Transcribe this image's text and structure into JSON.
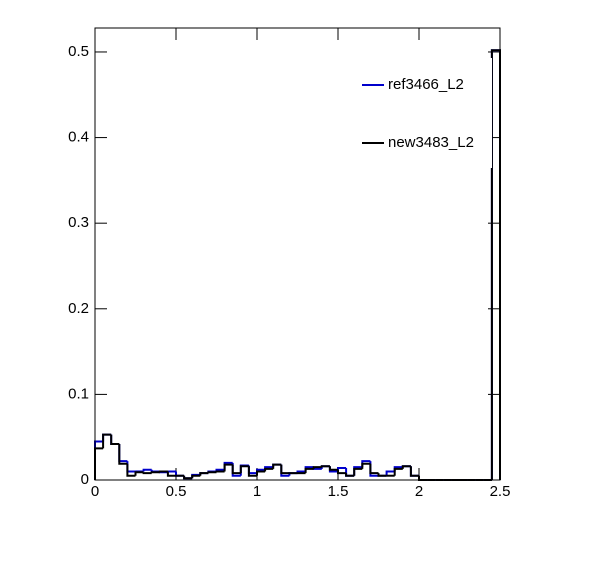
{
  "chart_data": {
    "type": "histogram",
    "bins": [
      0,
      0.05,
      0.1,
      0.15,
      0.2,
      0.25,
      0.3,
      0.35,
      0.4,
      0.45,
      0.5,
      0.55,
      0.6,
      0.65,
      0.7,
      0.75,
      0.8,
      0.85,
      0.9,
      0.95,
      1,
      1.05,
      1.1,
      1.15,
      1.2,
      1.25,
      1.3,
      1.35,
      1.4,
      1.45,
      1.5,
      1.55,
      1.6,
      1.65,
      1.7,
      1.75,
      1.8,
      1.85,
      1.9,
      1.95,
      2,
      2.05,
      2.1,
      2.15,
      2.2,
      2.25,
      2.3,
      2.35,
      2.4,
      2.45,
      2.5
    ],
    "series": [
      {
        "name": "ref3466_L2",
        "color": "#0000cc",
        "values": [
          0.045,
          0.053,
          0.042,
          0.022,
          0.01,
          0.01,
          0.012,
          0.01,
          0.009,
          0.01,
          0.005,
          0.002,
          0.006,
          0.008,
          0.01,
          0.012,
          0.02,
          0.005,
          0.017,
          0.008,
          0.012,
          0.015,
          0.018,
          0.005,
          0.008,
          0.01,
          0.015,
          0.013,
          0.016,
          0.01,
          0.014,
          0.005,
          0.015,
          0.022,
          0.005,
          0.005,
          0.01,
          0.015,
          0.016,
          0.005,
          0,
          0,
          0,
          0,
          0,
          0,
          0,
          0,
          0,
          0.502
        ]
      },
      {
        "name": "new3483_L2",
        "color": "#000000",
        "values": [
          0.037,
          0.053,
          0.042,
          0.019,
          0.005,
          0.009,
          0.008,
          0.009,
          0.01,
          0.005,
          0.005,
          0.002,
          0.005,
          0.008,
          0.009,
          0.01,
          0.018,
          0.008,
          0.016,
          0.005,
          0.01,
          0.013,
          0.018,
          0.008,
          0.008,
          0.008,
          0.013,
          0.015,
          0.016,
          0.012,
          0.008,
          0.005,
          0.013,
          0.019,
          0.008,
          0.005,
          0.005,
          0.013,
          0.016,
          0.005,
          0,
          0,
          0,
          0,
          0,
          0,
          0,
          0,
          0,
          0.502
        ]
      }
    ],
    "xlim": [
      0,
      2.5
    ],
    "ylim": [
      0,
      0.528
    ],
    "xticks": [
      0,
      0.5,
      1,
      1.5,
      2,
      2.5
    ],
    "yticks": [
      0,
      0.1,
      0.2,
      0.3,
      0.4,
      0.5
    ]
  }
}
